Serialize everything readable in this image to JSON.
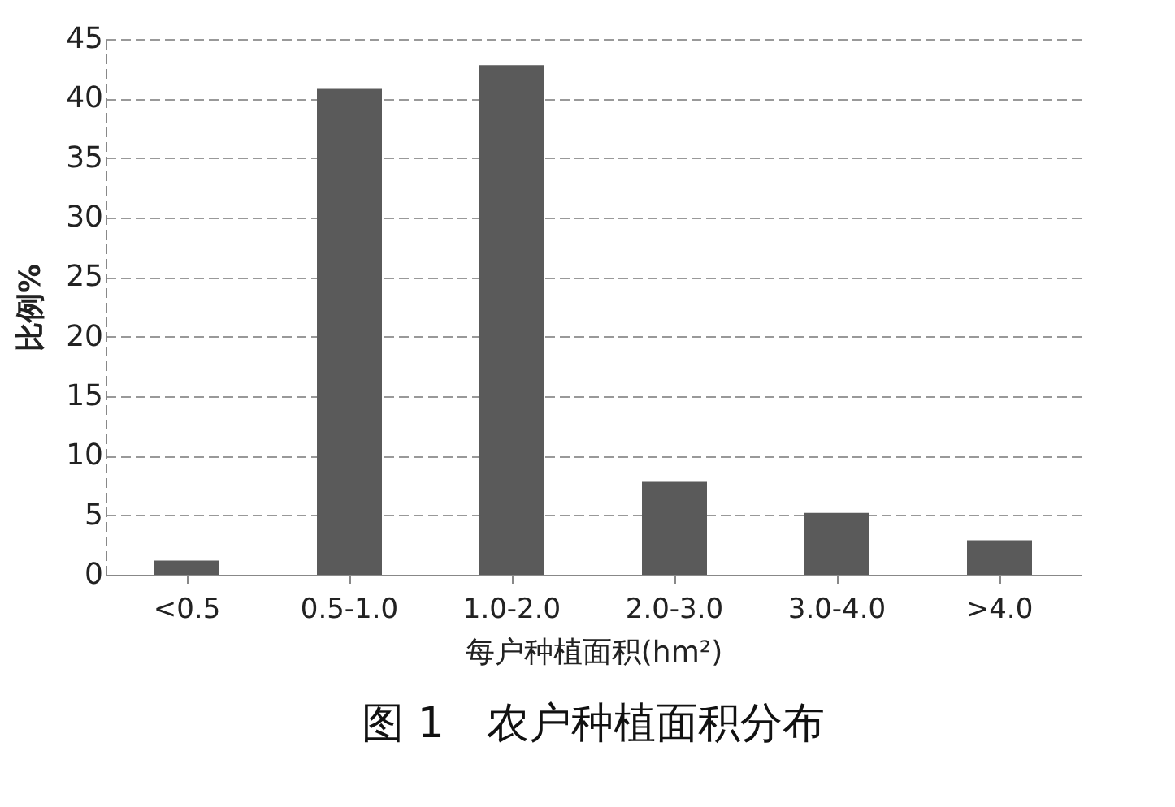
{
  "chart_data": {
    "type": "bar",
    "title": "图 1　农户种植面积分布",
    "xlabel": "每户种植面积(hm²)",
    "ylabel": "比例%",
    "categories": [
      "<0.5",
      "0.5-1.0",
      "1.0-2.0",
      "2.0-3.0",
      "3.0-4.0",
      ">4.0"
    ],
    "values": [
      1.2,
      40.8,
      42.8,
      7.8,
      5.2,
      2.9
    ],
    "color": "#5a5a5a",
    "ylim": [
      0,
      45
    ],
    "yticks": [
      0,
      5,
      10,
      15,
      20,
      25,
      30,
      35,
      40,
      45
    ],
    "grid": "y"
  }
}
